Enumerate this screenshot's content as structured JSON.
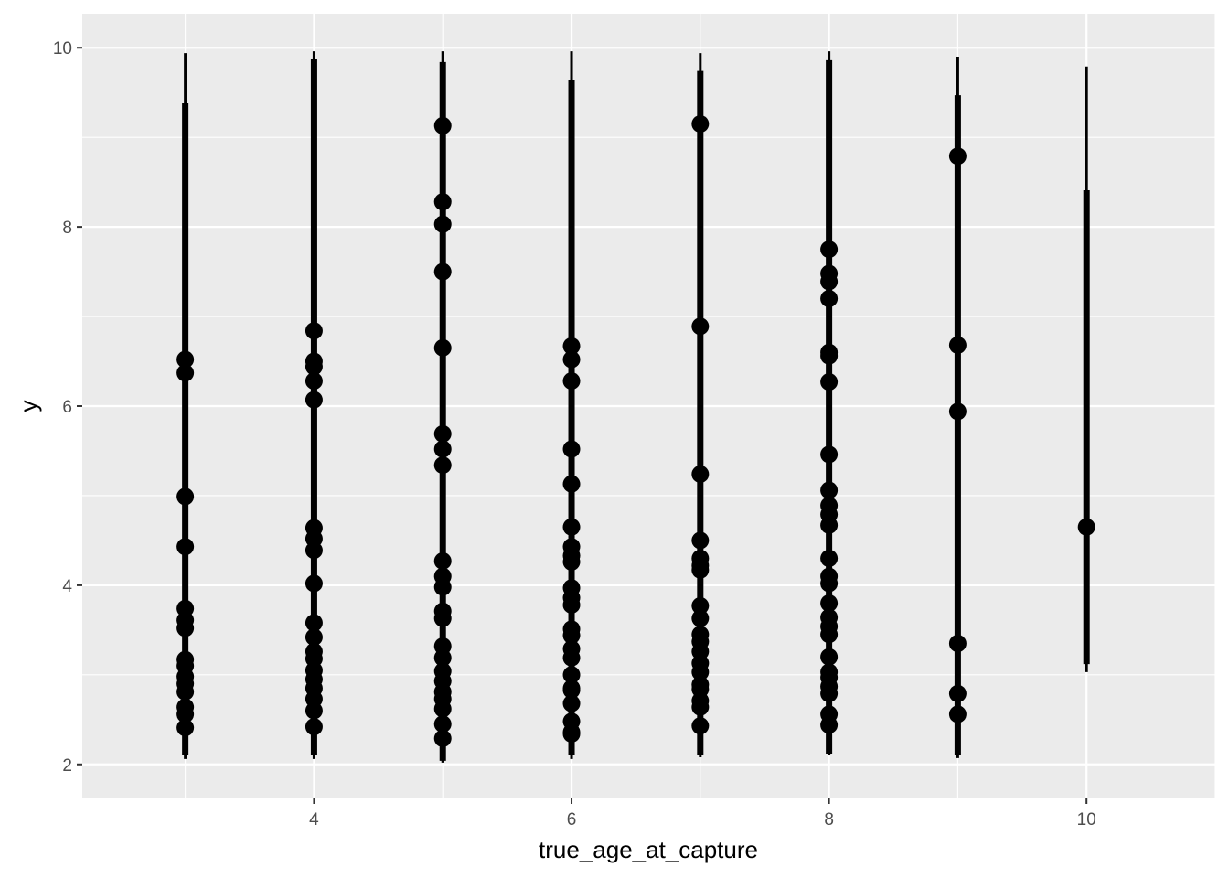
{
  "chart_data": {
    "type": "pointrange",
    "xlabel": "true_age_at_capture",
    "ylabel": "y",
    "xlim": [
      2.2,
      11.0
    ],
    "ylim": [
      1.62,
      10.38
    ],
    "x_ticks": [
      4,
      6,
      8,
      10
    ],
    "x_tick_labels": [
      "4",
      "6",
      "8",
      "10"
    ],
    "y_ticks": [
      2,
      4,
      6,
      8,
      10
    ],
    "y_tick_labels": [
      "2",
      "4",
      "6",
      "8",
      "10"
    ],
    "grid": true,
    "groups": [
      {
        "x": 3,
        "thin_range": [
          2.06,
          9.94
        ],
        "thick_range": [
          2.1,
          9.38
        ],
        "points": [
          6.52,
          6.37,
          4.99,
          4.43,
          3.74,
          3.61,
          3.52,
          3.17,
          3.1,
          2.98,
          2.9,
          2.81,
          2.64,
          2.56,
          2.41
        ]
      },
      {
        "x": 4,
        "thin_range": [
          2.06,
          9.96
        ],
        "thick_range": [
          2.1,
          9.88
        ],
        "points": [
          6.84,
          6.5,
          6.44,
          6.28,
          6.07,
          4.64,
          4.52,
          4.39,
          4.02,
          3.58,
          3.42,
          3.26,
          3.18,
          3.05,
          2.95,
          2.85,
          2.73,
          2.6,
          2.42
        ]
      },
      {
        "x": 5,
        "thin_range": [
          2.02,
          9.96
        ],
        "thick_range": [
          2.04,
          9.84
        ],
        "points": [
          9.13,
          8.28,
          8.03,
          7.5,
          6.65,
          5.69,
          5.52,
          5.34,
          4.27,
          4.1,
          3.98,
          3.71,
          3.63,
          3.32,
          3.19,
          3.04,
          2.93,
          2.81,
          2.73,
          2.62,
          2.45,
          2.29
        ]
      },
      {
        "x": 6,
        "thin_range": [
          2.06,
          9.96
        ],
        "thick_range": [
          2.1,
          9.64
        ],
        "points": [
          6.67,
          6.52,
          6.28,
          5.52,
          5.13,
          4.65,
          4.43,
          4.33,
          4.26,
          3.97,
          3.86,
          3.78,
          3.51,
          3.44,
          3.29,
          3.19,
          3.0,
          2.85,
          2.83,
          2.68,
          2.48,
          2.36,
          2.34
        ]
      },
      {
        "x": 7,
        "thin_range": [
          2.08,
          9.94
        ],
        "thick_range": [
          2.1,
          9.74
        ],
        "points": [
          9.15,
          6.89,
          5.24,
          4.5,
          4.3,
          4.22,
          4.17,
          3.77,
          3.63,
          3.45,
          3.37,
          3.26,
          3.13,
          3.03,
          2.89,
          2.84,
          2.71,
          2.64,
          2.43
        ]
      },
      {
        "x": 8,
        "thin_range": [
          2.1,
          9.96
        ],
        "thick_range": [
          2.12,
          9.86
        ],
        "points": [
          7.75,
          7.48,
          7.39,
          7.2,
          6.6,
          6.56,
          6.27,
          5.46,
          5.06,
          4.89,
          4.79,
          4.67,
          4.3,
          4.1,
          4.02,
          3.8,
          3.64,
          3.54,
          3.45,
          3.2,
          3.03,
          2.97,
          2.87,
          2.79,
          2.56,
          2.44
        ]
      },
      {
        "x": 9,
        "thin_range": [
          2.07,
          9.9
        ],
        "thick_range": [
          2.1,
          9.47
        ],
        "points": [
          8.79,
          6.68,
          5.94,
          3.35,
          2.79,
          2.56
        ]
      },
      {
        "x": 10,
        "thin_range": [
          3.03,
          9.79
        ],
        "thick_range": [
          3.12,
          8.41
        ],
        "points": [
          4.65
        ]
      }
    ]
  }
}
